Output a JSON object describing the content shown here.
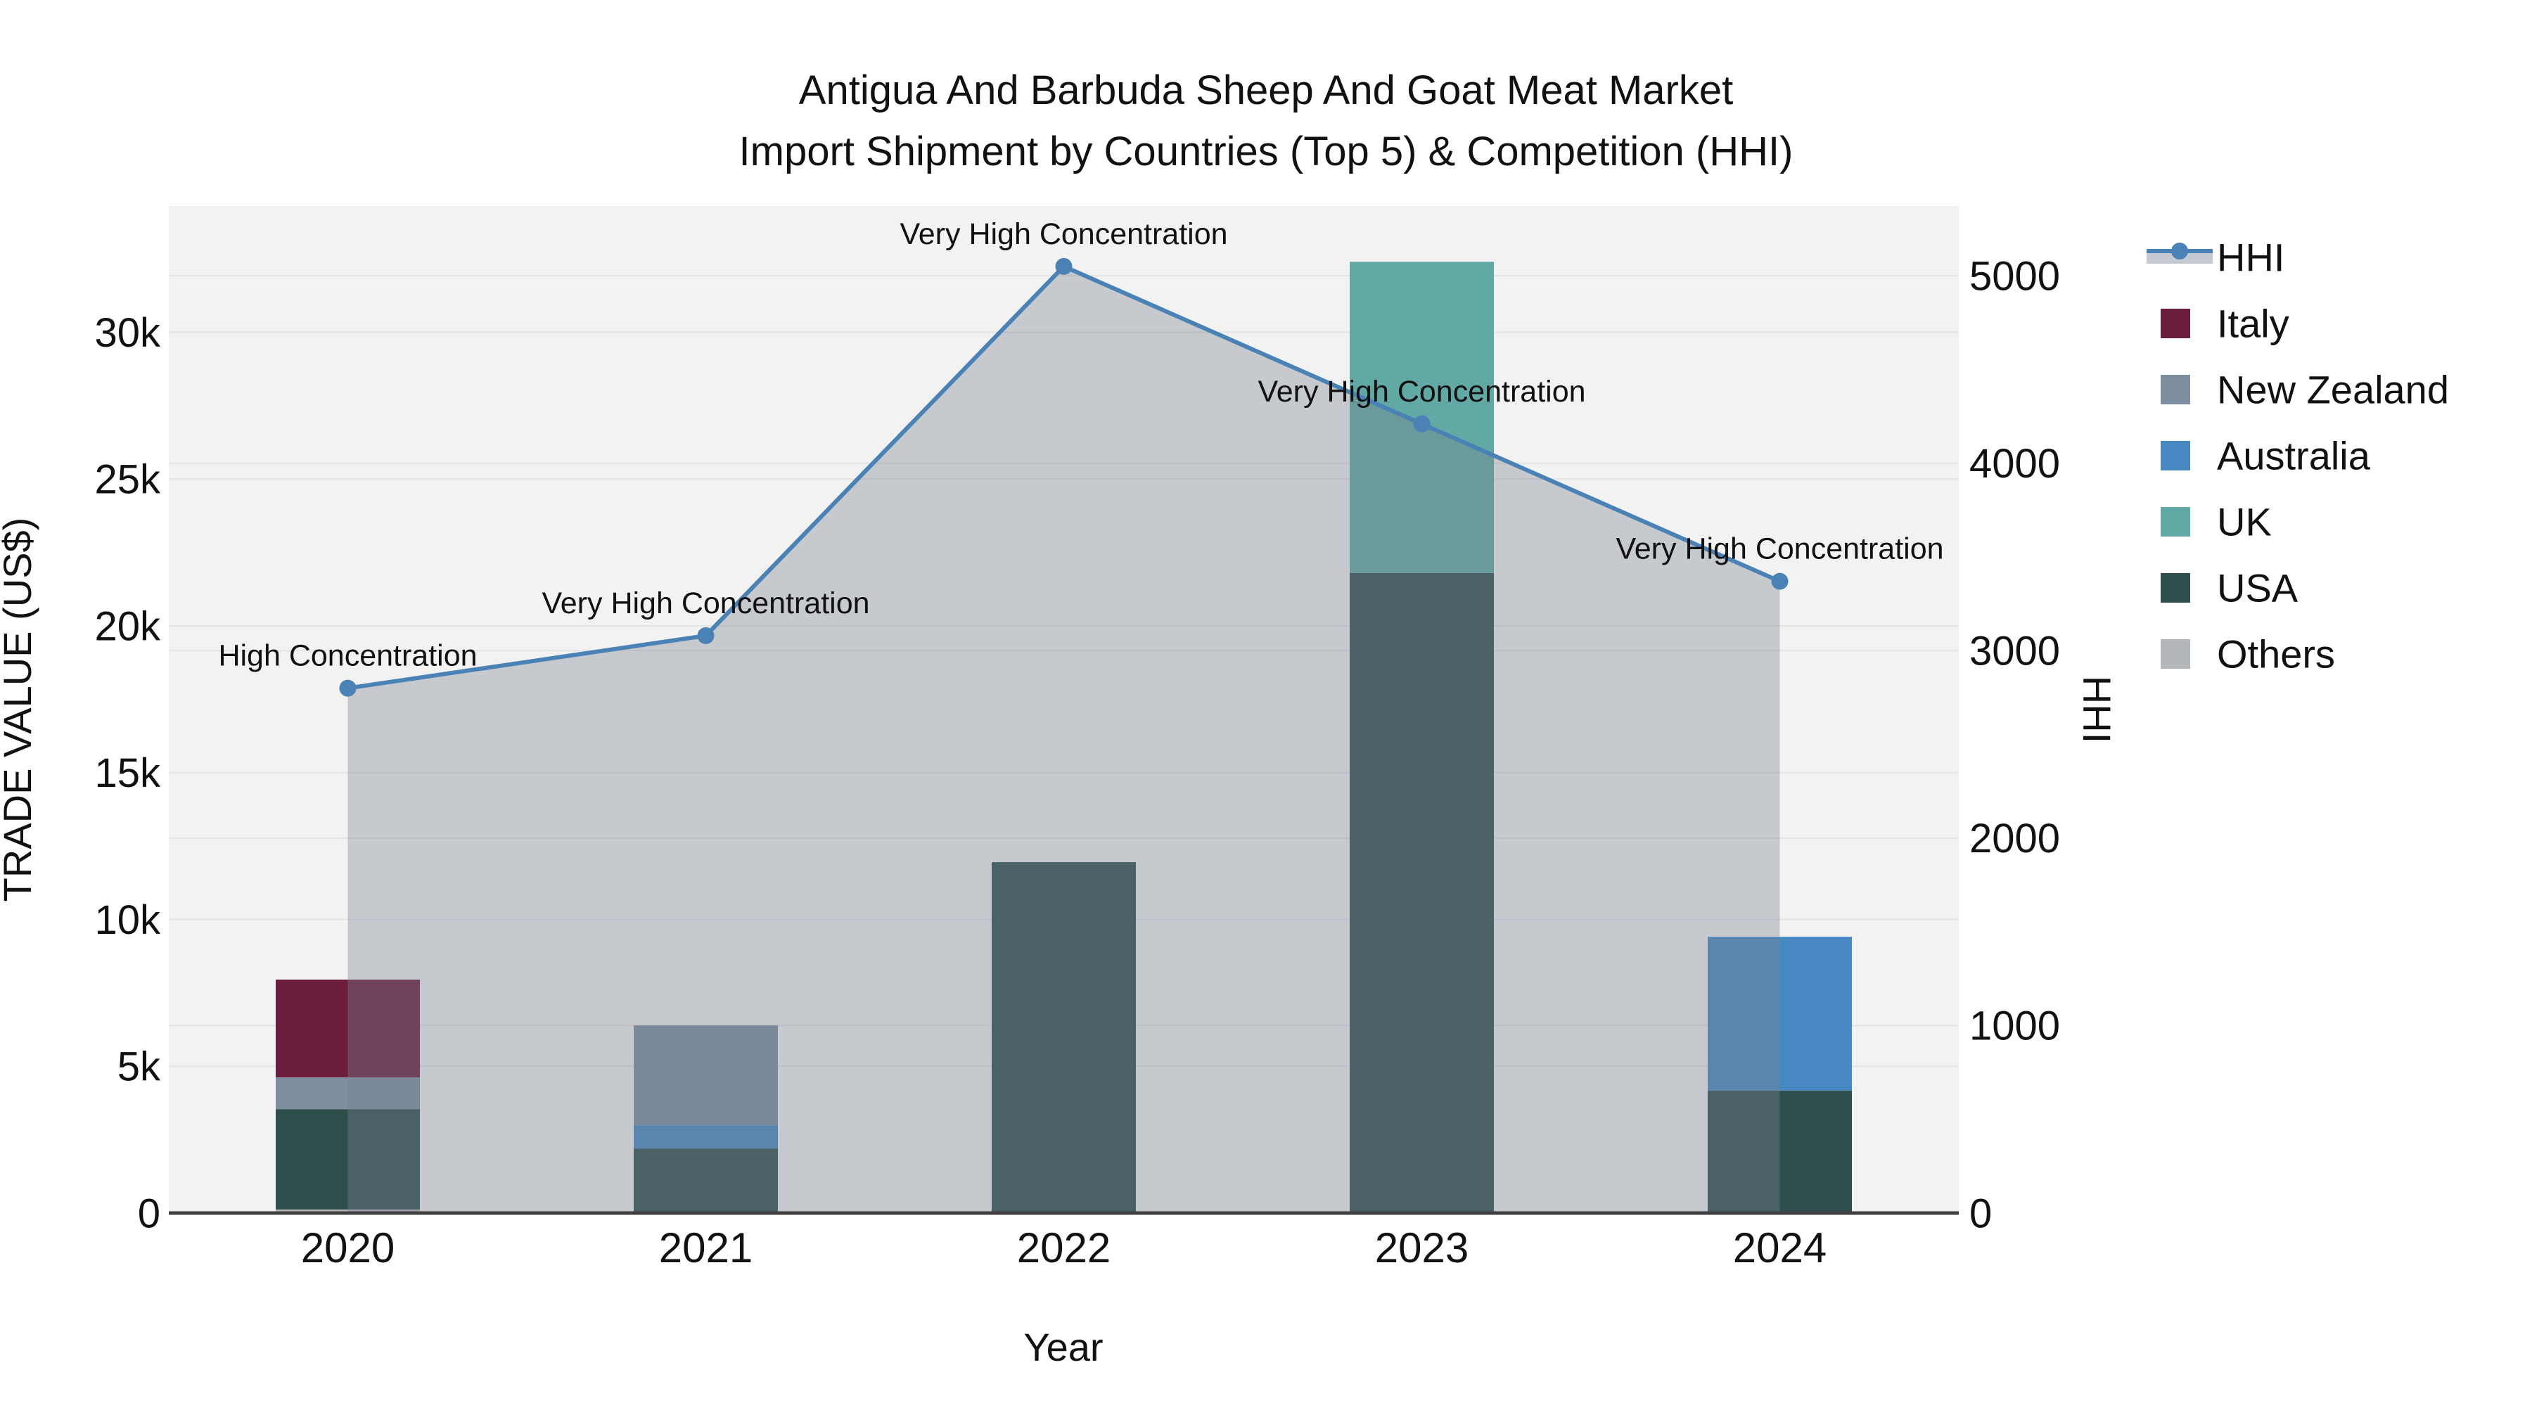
{
  "figure": {
    "title_line1": "Antigua And Barbuda Sheep And Goat Meat Market",
    "title_line2": "Import Shipment by Countries (Top 5) & Competition (HHI)"
  },
  "chart_data": {
    "type": "bar+line",
    "title": "Antigua And Barbuda Sheep And Goat Meat Market Import Shipment by Countries (Top 5) & Competition (HHI)",
    "categories": [
      "2020",
      "2021",
      "2022",
      "2023",
      "2024"
    ],
    "xlabel": "Year",
    "ylabel_left": "TRADE VALUE (US$)",
    "ylabel_right": "HHI",
    "stacking_note": "stacked bars, bottom to top: Others, USA, UK, Australia, New Zealand, Italy",
    "bar_series": [
      {
        "name": "Italy",
        "color": "#6c1d3e",
        "values": [
          3330,
          0,
          0,
          0,
          0
        ]
      },
      {
        "name": "New Zealand",
        "color": "#7e8da0",
        "values": [
          1080,
          3400,
          0,
          0,
          0
        ]
      },
      {
        "name": "Australia",
        "color": "#4787c2",
        "values": [
          0,
          790,
          0,
          0,
          5240
        ]
      },
      {
        "name": "UK",
        "color": "#62a8a5",
        "values": [
          0,
          0,
          0,
          10600,
          0
        ]
      },
      {
        "name": "USA",
        "color": "#2f4f4c",
        "values": [
          3420,
          2200,
          11950,
          21800,
          4170
        ]
      },
      {
        "name": "Others",
        "color": "#b4b7ba",
        "values": [
          120,
          0,
          0,
          0,
          0
        ]
      }
    ],
    "line_series": {
      "name": "HHI",
      "color": "#4a82b5",
      "area_fill": "rgba(122,130,144,0.37)",
      "values": [
        2800,
        3080,
        5050,
        4210,
        3370
      ]
    },
    "annotations": [
      {
        "year": "2020",
        "text": "High Concentration"
      },
      {
        "year": "2021",
        "text": "Very High Concentration"
      },
      {
        "year": "2022",
        "text": "Very High Concentration"
      },
      {
        "year": "2023",
        "text": "Very High Concentration"
      },
      {
        "year": "2024",
        "text": "Very High Concentration"
      }
    ],
    "y_left": {
      "tick_labels": [
        "0",
        "5k",
        "10k",
        "15k",
        "20k",
        "25k",
        "30k"
      ],
      "tick_values": [
        0,
        5000,
        10000,
        15000,
        20000,
        25000,
        30000
      ],
      "range": [
        0,
        34300
      ]
    },
    "y_right": {
      "tick_labels": [
        "0",
        "1000",
        "2000",
        "3000",
        "4000",
        "5000"
      ],
      "tick_values": [
        0,
        1000,
        2000,
        3000,
        4000,
        5000
      ],
      "range": [
        0,
        5372
      ]
    },
    "legend_order": [
      "HHI",
      "Italy",
      "New Zealand",
      "Australia",
      "UK",
      "USA",
      "Others"
    ],
    "legend_position": "right",
    "grid": true
  },
  "colors": {
    "figure_bg": "#ffffff",
    "plot_bg": "#f2f2f2",
    "gridline": "#e3e4e6",
    "axis_line": "#3f3f3f",
    "text": "#111111",
    "legend_area_band": "#c5cad2"
  }
}
